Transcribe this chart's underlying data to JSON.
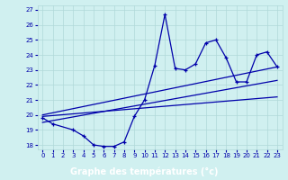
{
  "xlabel": "Graphe des températures (°c)",
  "x_hours": [
    0,
    1,
    2,
    3,
    4,
    5,
    6,
    7,
    8,
    9,
    10,
    11,
    12,
    13,
    14,
    15,
    16,
    17,
    18,
    19,
    20,
    21,
    22,
    23
  ],
  "y_main": [
    19.8,
    19.4,
    null,
    19.0,
    18.6,
    18.0,
    17.9,
    17.9,
    18.2,
    19.9,
    21.0,
    23.3,
    26.7,
    23.1,
    23.0,
    23.4,
    24.8,
    25.0,
    23.8,
    22.2,
    22.2,
    24.0,
    24.2,
    23.2
  ],
  "line1_start": 19.9,
  "line1_end": 21.2,
  "line2_start": 19.5,
  "line2_end": 22.3,
  "line3_start": 20.0,
  "line3_end": 23.2,
  "line_color": "#0000aa",
  "bg_color": "#d0f0f0",
  "grid_color": "#b0d8d8",
  "label_bg": "#0000aa",
  "label_fg": "#ffffff",
  "ylim": [
    17.7,
    27.3
  ],
  "xlim": [
    -0.5,
    23.5
  ],
  "yticks": [
    18,
    19,
    20,
    21,
    22,
    23,
    24,
    25,
    26,
    27
  ],
  "xticks": [
    0,
    1,
    2,
    3,
    4,
    5,
    6,
    7,
    8,
    9,
    10,
    11,
    12,
    13,
    14,
    15,
    16,
    17,
    18,
    19,
    20,
    21,
    22,
    23
  ]
}
